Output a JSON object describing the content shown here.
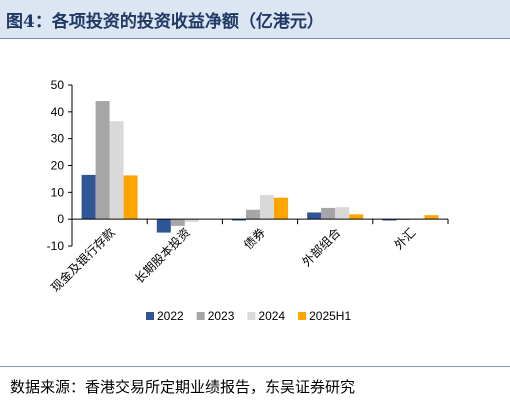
{
  "figure": {
    "title": "图4：各项投资的投资收益净额（亿港元）",
    "source": "数据来源：香港交易所定期业绩报告，东吴证券研究"
  },
  "chart_data": {
    "type": "bar",
    "title": "",
    "xlabel": "",
    "ylabel": "",
    "unit": "亿港元",
    "ylim": [
      -10,
      50
    ],
    "yticks": [
      -10,
      0,
      10,
      20,
      30,
      40,
      50
    ],
    "grid": false,
    "legend_position": "bottom",
    "categories": [
      "现金及银行存款",
      "长期股本投资",
      "债券",
      "外部组合",
      "外汇"
    ],
    "series": [
      {
        "name": "2022",
        "color": "#2f5597",
        "values": [
          16.5,
          -5.0,
          -0.5,
          2.5,
          -0.5
        ]
      },
      {
        "name": "2023",
        "color": "#a6a6a6",
        "values": [
          44.0,
          -2.5,
          3.5,
          4.2,
          -0.3
        ]
      },
      {
        "name": "2024",
        "color": "#d9d9d9",
        "values": [
          36.5,
          -1.0,
          9.0,
          4.5,
          0.2
        ]
      },
      {
        "name": "2025H1",
        "color": "#ffa500",
        "values": [
          16.3,
          0.0,
          8.0,
          1.8,
          1.5
        ]
      }
    ]
  }
}
